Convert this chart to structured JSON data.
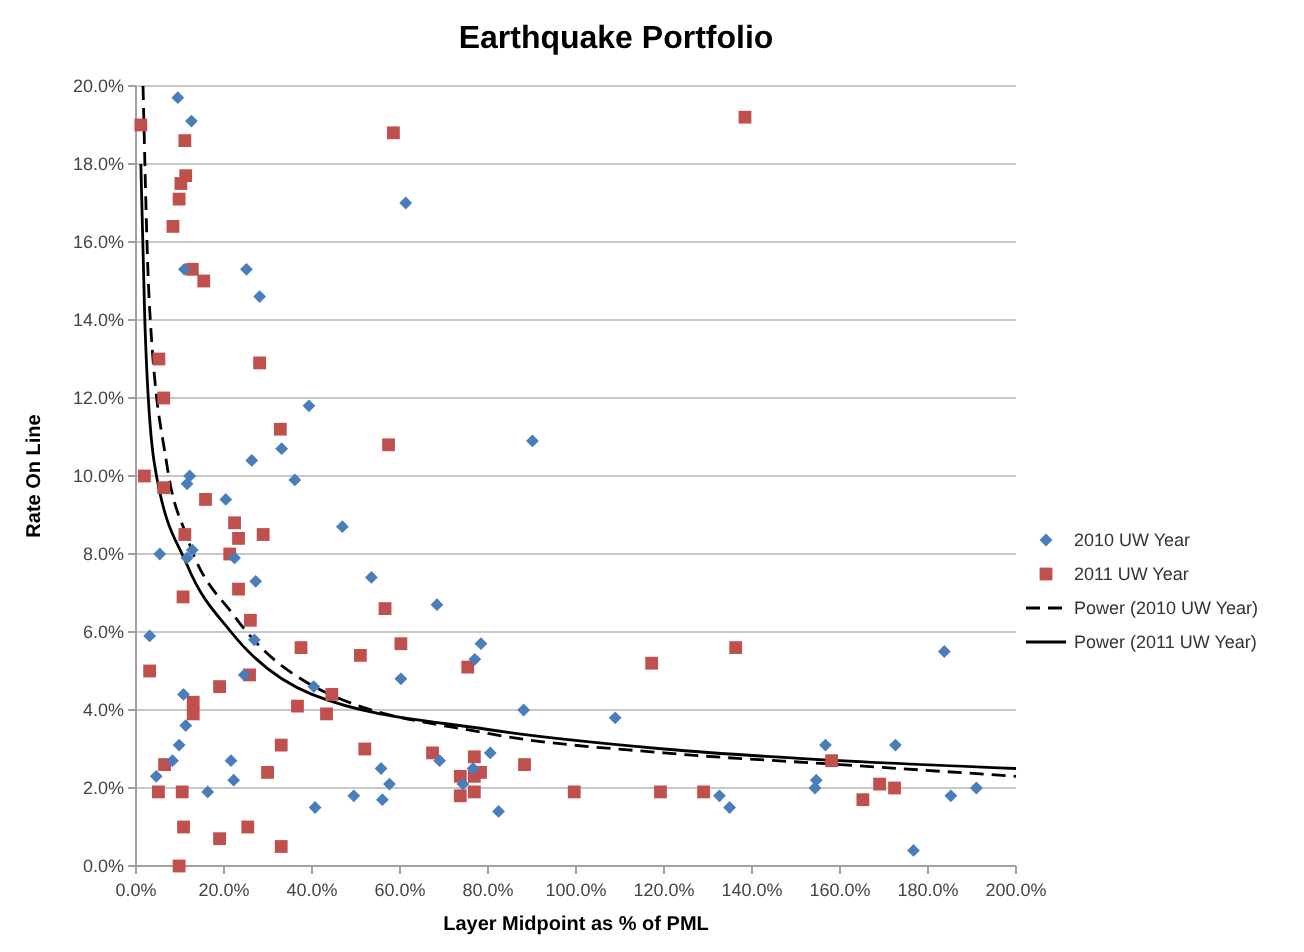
{
  "chart_data": {
    "type": "scatter",
    "title": "Earthquake Portfolio",
    "xlabel": "Layer Midpoint as % of PML",
    "ylabel": "Rate On Line",
    "xlim": [
      0,
      200
    ],
    "ylim": [
      0,
      20
    ],
    "xticks": [
      {
        "value": 0,
        "label": "0.0%"
      },
      {
        "value": 20,
        "label": "20.0%"
      },
      {
        "value": 40,
        "label": "40.0%"
      },
      {
        "value": 60,
        "label": "60.0%"
      },
      {
        "value": 80,
        "label": "80.0%"
      },
      {
        "value": 100,
        "label": "100.0%"
      },
      {
        "value": 120,
        "label": "120.0%"
      },
      {
        "value": 140,
        "label": "140.0%"
      },
      {
        "value": 160,
        "label": "160.0%"
      },
      {
        "value": 180,
        "label": "180.0%"
      },
      {
        "value": 200,
        "label": "200.0%"
      }
    ],
    "yticks": [
      {
        "value": 0,
        "label": "0.0%"
      },
      {
        "value": 2,
        "label": "2.0%"
      },
      {
        "value": 4,
        "label": "4.0%"
      },
      {
        "value": 6,
        "label": "6.0%"
      },
      {
        "value": 8,
        "label": "8.0%"
      },
      {
        "value": 10,
        "label": "10.0%"
      },
      {
        "value": 12,
        "label": "12.0%"
      },
      {
        "value": 14,
        "label": "14.0%"
      },
      {
        "value": 16,
        "label": "16.0%"
      },
      {
        "value": 18,
        "label": "18.0%"
      },
      {
        "value": 20,
        "label": "20.0%"
      }
    ],
    "grid": "y",
    "legend": "right",
    "series": [
      {
        "name": "2010 UW Year",
        "marker": "diamond",
        "color": "#4a7ebb",
        "x": [
          9.5,
          12.6,
          61.3,
          11.0,
          25.1,
          28.1,
          39.3,
          33.1,
          26.3,
          12.2,
          11.6,
          36.1,
          20.4,
          46.9,
          5.4,
          11.6,
          12.8,
          22.4,
          27.2,
          53.5,
          68.4,
          3.1,
          26.9,
          24.6,
          60.2,
          40.4,
          10.8,
          11.3,
          9.8,
          8.3,
          21.6,
          22.2,
          4.6,
          55.7,
          57.6,
          16.3,
          49.5,
          56.0,
          40.7,
          90.1,
          78.4,
          77.0,
          88.1,
          108.9,
          80.5,
          76.6,
          74.3,
          82.4,
          132.6,
          134.9,
          183.7,
          156.7,
          154.6,
          154.3,
          172.6,
          185.2,
          191.0,
          176.7,
          69.0
        ],
        "values": [
          19.7,
          19.1,
          17.0,
          15.3,
          15.3,
          14.6,
          11.8,
          10.7,
          10.4,
          10.0,
          9.8,
          9.9,
          9.4,
          8.7,
          8.0,
          7.9,
          8.1,
          7.9,
          7.3,
          7.4,
          6.7,
          5.9,
          5.8,
          4.9,
          4.8,
          4.6,
          4.4,
          3.6,
          3.1,
          2.7,
          2.7,
          2.2,
          2.3,
          2.5,
          2.1,
          1.9,
          1.8,
          1.7,
          1.5,
          10.9,
          5.7,
          5.3,
          4.0,
          3.8,
          2.9,
          2.5,
          2.1,
          1.4,
          1.8,
          1.5,
          5.5,
          3.1,
          2.2,
          2.0,
          3.1,
          1.8,
          2.0,
          0.4,
          2.7
        ]
      },
      {
        "name": "2011 UW Year",
        "marker": "square",
        "color": "#c0504d",
        "x": [
          1.1,
          11.1,
          11.3,
          10.2,
          9.8,
          8.4,
          58.5,
          12.8,
          15.4,
          5.2,
          28.1,
          6.3,
          32.8,
          57.4,
          1.9,
          6.3,
          15.8,
          22.4,
          23.3,
          11.1,
          28.9,
          21.3,
          23.3,
          10.7,
          56.6,
          26.0,
          37.5,
          51.0,
          60.2,
          3.1,
          25.8,
          19.0,
          13.0,
          44.5,
          36.7,
          13.0,
          43.3,
          33.0,
          52.0,
          67.4,
          6.5,
          29.9,
          5.1,
          10.5,
          10.8,
          25.4,
          19.0,
          33.0,
          9.8,
          75.4,
          117.2,
          76.9,
          78.3,
          76.9,
          73.7,
          88.3,
          73.7,
          76.9,
          99.6,
          119.2,
          129.0,
          138.4,
          136.3,
          158.1,
          165.2,
          169.0,
          172.4
        ],
        "values": [
          19.0,
          18.6,
          17.7,
          17.5,
          17.1,
          16.4,
          18.8,
          15.3,
          15.0,
          13.0,
          12.9,
          12.0,
          11.2,
          10.8,
          10.0,
          9.7,
          9.4,
          8.8,
          8.4,
          8.5,
          8.5,
          8.0,
          7.1,
          6.9,
          6.6,
          6.3,
          5.6,
          5.4,
          5.7,
          5.0,
          4.9,
          4.6,
          4.2,
          4.4,
          4.1,
          3.9,
          3.9,
          3.1,
          3.0,
          2.9,
          2.6,
          2.4,
          1.9,
          1.9,
          1.0,
          1.0,
          0.7,
          0.5,
          0.0,
          5.1,
          5.2,
          2.8,
          2.4,
          2.3,
          2.3,
          2.6,
          1.8,
          1.9,
          1.9,
          1.9,
          1.9,
          19.2,
          5.6,
          2.7,
          1.7,
          2.1,
          2.0
        ]
      },
      {
        "name": "Power (2010 UW Year)",
        "type": "line",
        "line_style": "dashed",
        "color": "#000000",
        "x": [
          1.6,
          3,
          7,
          11.7,
          22.4,
          40.5,
          80,
          120,
          160,
          200
        ],
        "values": [
          20,
          14.5,
          10.3,
          8.4,
          6.4,
          4.6,
          3.4,
          2.9,
          2.6,
          2.3
        ]
      },
      {
        "name": "Power (2011 UW Year)",
        "type": "line",
        "line_style": "solid",
        "color": "#000000",
        "x": [
          1.1,
          2,
          4.2,
          11.7,
          21.6,
          40,
          80,
          120,
          160,
          200
        ],
        "values": [
          18,
          14,
          10.3,
          7.7,
          6.0,
          4.4,
          3.5,
          3.0,
          2.7,
          2.5
        ]
      }
    ]
  }
}
